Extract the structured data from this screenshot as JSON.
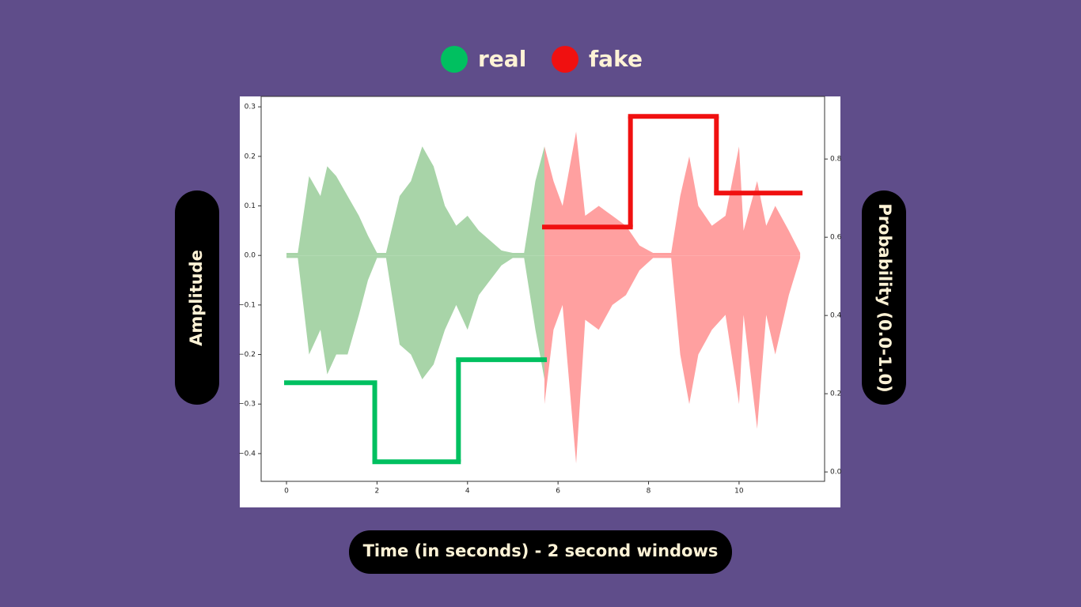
{
  "chart_data": {
    "type": "step",
    "legend": [
      {
        "name": "real",
        "color": "#00c060"
      },
      {
        "name": "fake",
        "color": "#f01010"
      }
    ],
    "ylabel": "Amplitude",
    "y2label": "Probability (0.0-1.0)",
    "xlabel": "Time (in seconds) - 2 second windows",
    "xlim": [
      -0.56,
      11.89
    ],
    "xticks": [
      0,
      2,
      4,
      6,
      8,
      10
    ],
    "ylim": [
      -0.456,
      0.321
    ],
    "yticks": [
      {
        "value": -0.4,
        "label": "−0.4"
      },
      {
        "value": -0.3,
        "label": "−0.3"
      },
      {
        "value": -0.2,
        "label": "−0.2"
      },
      {
        "value": -0.1,
        "label": "−0.1"
      },
      {
        "value": 0,
        "label": "0.0"
      },
      0.1,
      0.2,
      0.3
    ],
    "y2lim": [
      -0.024,
      0.96
    ],
    "y2ticks": [
      {
        "value": 0,
        "label": "0.0"
      },
      0.2,
      0.4,
      0.6,
      0.8
    ],
    "waveform": [
      {
        "color": "#a8d4a8",
        "x": [
          0,
          0.25,
          0.5,
          0.75,
          0.9,
          1.1,
          1.35,
          1.6,
          1.8,
          2.0,
          2.2,
          2.5,
          2.75,
          3.0,
          3.25,
          3.5,
          3.75,
          4.0,
          4.25,
          4.5,
          4.75,
          5.0,
          5.25,
          5.5,
          5.7
        ],
        "upper": [
          0.005,
          0.005,
          0.16,
          0.12,
          0.18,
          0.16,
          0.12,
          0.08,
          0.04,
          0.005,
          0.005,
          0.12,
          0.15,
          0.22,
          0.18,
          0.1,
          0.06,
          0.08,
          0.05,
          0.03,
          0.01,
          0.005,
          0.005,
          0.15,
          0.22
        ],
        "lower": [
          -0.005,
          -0.005,
          -0.2,
          -0.15,
          -0.24,
          -0.2,
          -0.2,
          -0.12,
          -0.05,
          -0.005,
          -0.005,
          -0.18,
          -0.2,
          -0.25,
          -0.22,
          -0.15,
          -0.1,
          -0.15,
          -0.08,
          -0.05,
          -0.02,
          -0.005,
          -0.005,
          -0.15,
          -0.25
        ]
      },
      {
        "color": "#ffa0a0",
        "x": [
          5.7,
          5.9,
          6.1,
          6.4,
          6.6,
          6.9,
          7.2,
          7.5,
          7.8,
          8.1,
          8.5,
          8.7,
          8.9,
          9.1,
          9.4,
          9.7,
          10.0,
          10.1,
          10.4,
          10.6,
          10.8,
          11.1,
          11.35
        ],
        "upper": [
          0.22,
          0.15,
          0.1,
          0.25,
          0.08,
          0.1,
          0.08,
          0.06,
          0.02,
          0.005,
          0.005,
          0.12,
          0.2,
          0.1,
          0.06,
          0.08,
          0.22,
          0.05,
          0.15,
          0.06,
          0.1,
          0.05,
          0.005
        ],
        "lower": [
          -0.3,
          -0.15,
          -0.1,
          -0.42,
          -0.13,
          -0.15,
          -0.1,
          -0.08,
          -0.03,
          -0.005,
          -0.005,
          -0.2,
          -0.3,
          -0.2,
          -0.15,
          -0.12,
          -0.3,
          -0.12,
          -0.35,
          -0.12,
          -0.2,
          -0.08,
          -0.005
        ]
      }
    ],
    "series": [
      {
        "color": "#00c060",
        "axis": "y2",
        "bins": [
          0,
          1.95,
          3.8,
          5.7
        ],
        "values": [
          0.228,
          0.026,
          0.287
        ]
      },
      {
        "color": "#f01010",
        "axis": "y2",
        "bins": [
          5.7,
          7.6,
          9.5,
          11.35
        ],
        "values": [
          0.626,
          0.909,
          0.713
        ]
      }
    ]
  }
}
